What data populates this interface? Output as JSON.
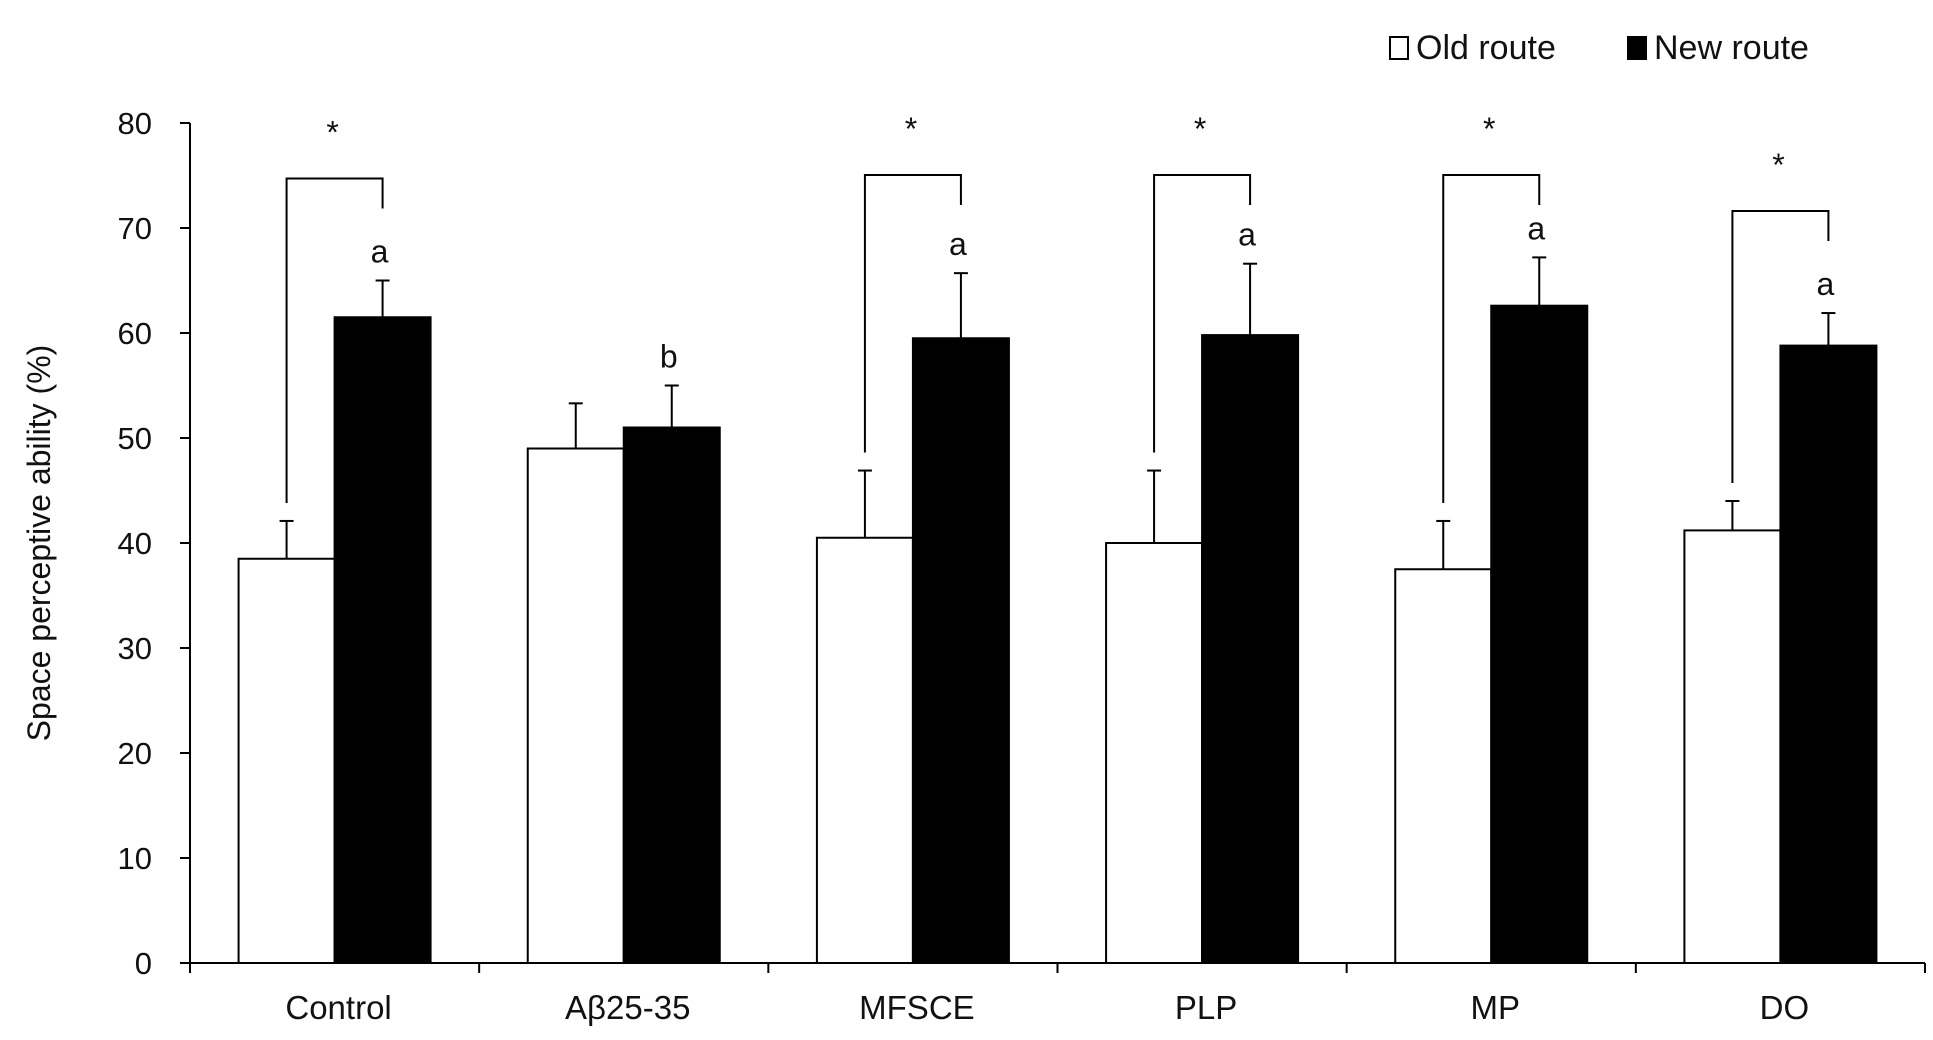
{
  "chart_data": {
    "type": "bar",
    "title": "",
    "xlabel": "",
    "ylabel": "Space perceptive ability (%)",
    "ylim": [
      0,
      80
    ],
    "yticks": [
      "0",
      "10",
      "20",
      "30",
      "40",
      "50",
      "60",
      "70",
      "80"
    ],
    "categories": [
      "Control",
      "Aβ25-35",
      "MFSCE",
      "PLP",
      "MP",
      "DO"
    ],
    "series": [
      {
        "name": "Old route",
        "legend_label": "Old route",
        "color": "#ffffff",
        "values": [
          38.5,
          49.0,
          40.5,
          40.0,
          37.5,
          41.2
        ],
        "errors": [
          3.6,
          4.3,
          6.4,
          6.9,
          4.6,
          2.8
        ]
      },
      {
        "name": "New route",
        "legend_label": "New route",
        "color": "#000000",
        "values": [
          61.5,
          51.0,
          59.5,
          59.8,
          62.6,
          58.8
        ],
        "errors": [
          3.5,
          4.0,
          6.2,
          6.8,
          4.6,
          3.1
        ]
      }
    ],
    "letters": [
      "a",
      "b",
      "a",
      "a",
      "a",
      "a"
    ],
    "significance_marker": "*",
    "significant": [
      true,
      false,
      true,
      true,
      true,
      true
    ],
    "legend_position": "top-right",
    "grid": false
  }
}
